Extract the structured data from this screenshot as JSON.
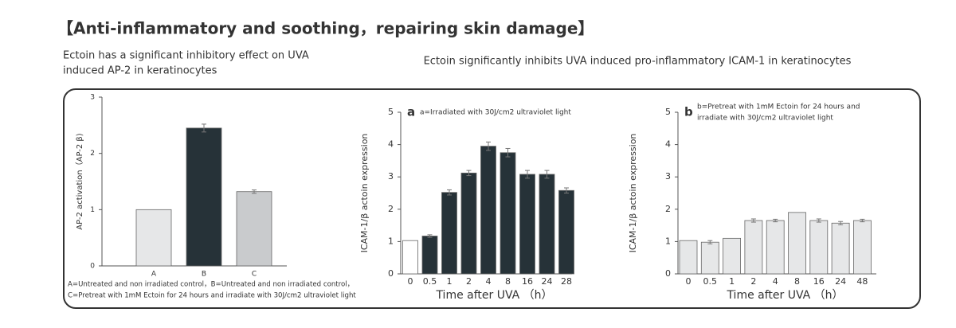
{
  "title": "【Anti-inflammatory and soothing，repairing skin damage】",
  "captions": [
    [
      "Ectoin has a significant inhibitory effect on UVA",
      "induced AP-2 in keratinocytes"
    ],
    [
      "Ectoin significantly inhibits UVA induced pro-inflammatory ICAM-1 in keratinocytes"
    ]
  ],
  "chart_data": [
    {
      "type": "bar",
      "ylabel": "AP-2  activation（AP-2 β)",
      "categories": [
        "A",
        "B",
        "C"
      ],
      "values": [
        1,
        2.45,
        1.32
      ],
      "errors": [
        0,
        0.07,
        0.03
      ],
      "colors": [
        "#e6e7e8",
        "#263238",
        "#c9cbcd"
      ],
      "ylim": [
        0,
        3
      ],
      "yticks": [
        0,
        1,
        2,
        3
      ],
      "notes": [
        "A=Untreated and non irradiated control，B=Untreated and non irradiated control，",
        "C=Pretreat with 1mM Ectoin for 24 hours and irradiate with 30J/cm2 ultraviolet light"
      ]
    },
    {
      "type": "bar",
      "panel_label": "a",
      "annotation": [
        "a=Irradiated with 30J/cm2 ultraviolet light"
      ],
      "ylabel": "ICAM-1/β actoin expression",
      "xlabel": "Time after  UVA （h）",
      "categories": [
        "0",
        "0.5",
        "1",
        "2",
        "4",
        "8",
        "16",
        "24",
        "28"
      ],
      "values": [
        1.03,
        1.17,
        2.52,
        3.12,
        3.95,
        3.75,
        3.08,
        3.08,
        2.58
      ],
      "errors": [
        0,
        0.04,
        0.08,
        0.08,
        0.13,
        0.13,
        0.12,
        0.12,
        0.08
      ],
      "colors": [
        "#ffffff",
        "#263238",
        "#263238",
        "#263238",
        "#263238",
        "#263238",
        "#263238",
        "#263238",
        "#263238"
      ],
      "ylim": [
        0,
        5
      ],
      "yticks": [
        0,
        1,
        2,
        3,
        4,
        5
      ]
    },
    {
      "type": "bar",
      "panel_label": "b",
      "annotation": [
        "b=Pretreat with 1mM Ectoin for 24 hours and",
        "irradiate with 30J/cm2 ultraviolet light"
      ],
      "ylabel": "ICAM-1/β actoin expression",
      "xlabel": "Time after  UVA （h）",
      "categories": [
        "0",
        "0.5",
        "1",
        "2",
        "4",
        "8",
        "16",
        "24",
        "48"
      ],
      "values": [
        1.03,
        0.98,
        1.1,
        1.65,
        1.65,
        1.9,
        1.65,
        1.57,
        1.65
      ],
      "errors": [
        0,
        0.05,
        0,
        0.05,
        0.04,
        0,
        0.05,
        0.05,
        0.04
      ],
      "color": "#e6e7e8",
      "ylim": [
        0,
        5
      ],
      "yticks": [
        0,
        1,
        2,
        3,
        4,
        5
      ]
    }
  ]
}
